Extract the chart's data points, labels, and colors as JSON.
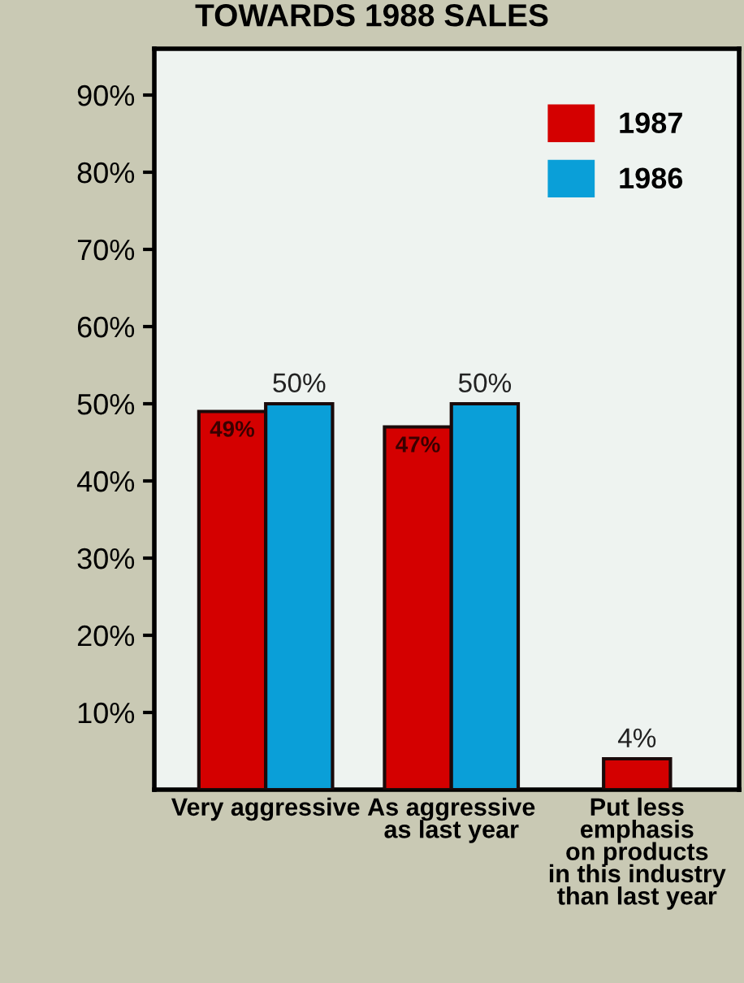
{
  "chart_data": {
    "type": "bar",
    "title": "TOWARDS 1988 SALES",
    "categories": [
      "Very aggressive",
      "As aggressive\nas last year",
      "Put less\nemphasis\non products\nin this industry\nthan last year"
    ],
    "series": [
      {
        "name": "1987",
        "color": "#d40000",
        "values": [
          49,
          47,
          4
        ],
        "value_labels": [
          "49%",
          "47%",
          "4%"
        ]
      },
      {
        "name": "1986",
        "color": "#0a9fd8",
        "values": [
          50,
          50,
          null
        ],
        "value_labels": [
          "50%",
          "50%",
          null
        ]
      }
    ],
    "ylim": [
      0,
      96
    ],
    "yticks": [
      {
        "value": 10,
        "label": "10%"
      },
      {
        "value": 20,
        "label": "20%"
      },
      {
        "value": 30,
        "label": "30%"
      },
      {
        "value": 40,
        "label": "40%"
      },
      {
        "value": 50,
        "label": "50%"
      },
      {
        "value": 60,
        "label": "60%"
      },
      {
        "value": 70,
        "label": "70%"
      },
      {
        "value": 80,
        "label": "80%"
      },
      {
        "value": 90,
        "label": "90%"
      }
    ],
    "grid": false,
    "legend": "top right"
  }
}
